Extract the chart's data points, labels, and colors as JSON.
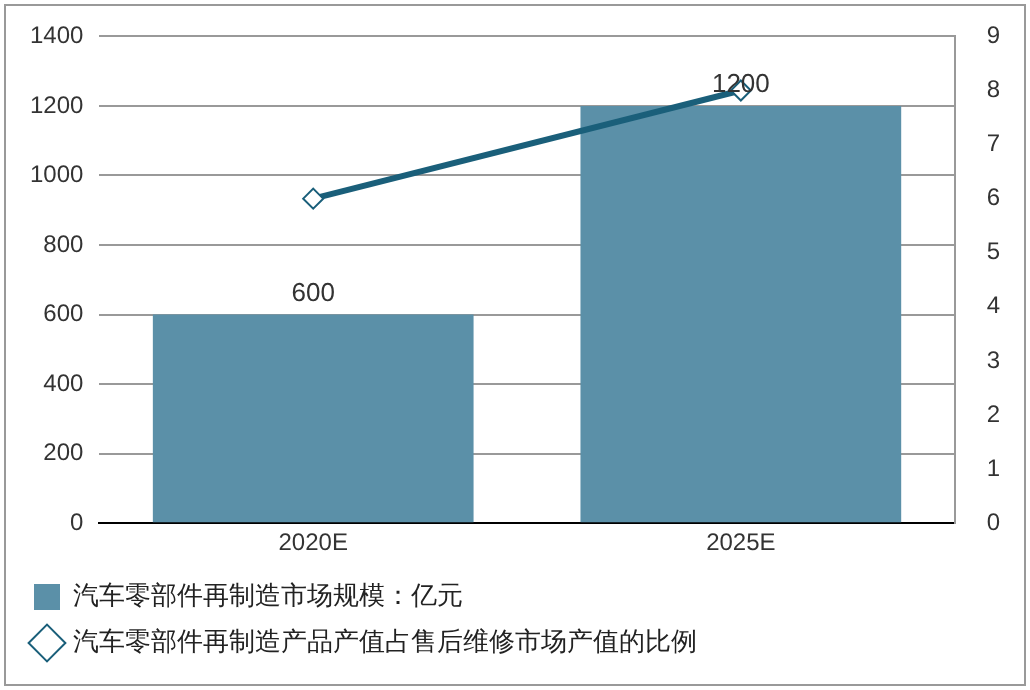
{
  "chart_data": {
    "type": "bar",
    "categories": [
      "2020E",
      "2025E"
    ],
    "series": [
      {
        "name": "汽车零部件再制造市场规模：亿元",
        "color": "#5b90a8",
        "values": [
          600,
          1200
        ],
        "data_labels": true
      },
      {
        "name": "汽车零部件再制造产品产值占售后维修市场产值的比例",
        "type": "line",
        "axis": "y2",
        "color": "#1a5f7a",
        "values": [
          6,
          8
        ],
        "marker": "diamond"
      }
    ],
    "ylim": [
      0,
      1400
    ],
    "yticks": [
      0,
      200,
      400,
      600,
      800,
      1000,
      1200,
      1400
    ],
    "y2lim": [
      0,
      9
    ],
    "y2ticks": [
      0,
      1,
      2,
      3,
      4,
      5,
      6,
      7,
      8,
      9
    ],
    "grid": "y",
    "legend": "bottom"
  }
}
